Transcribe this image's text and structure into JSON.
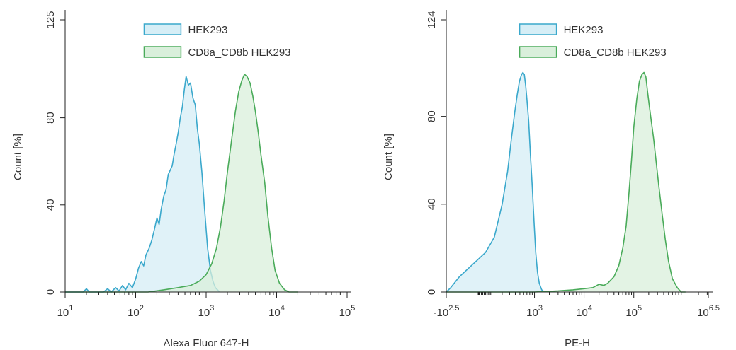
{
  "chart_data": [
    {
      "type": "area",
      "title": "",
      "xlabel": "Alexa Fluor 647-H",
      "ylabel": "Count [%]",
      "x_scale": "log",
      "xlim": [
        10,
        100000
      ],
      "ylim": [
        0,
        125
      ],
      "x_ticks": [
        {
          "value": 10,
          "base": "10",
          "exp": "1"
        },
        {
          "value": 100,
          "base": "10",
          "exp": "2"
        },
        {
          "value": 1000,
          "base": "10",
          "exp": "3"
        },
        {
          "value": 10000,
          "base": "10",
          "exp": "4"
        },
        {
          "value": 100000,
          "base": "10",
          "exp": "5"
        }
      ],
      "y_ticks": [
        {
          "value": 0,
          "label": "0"
        },
        {
          "value": 40,
          "label": "40"
        },
        {
          "value": 80,
          "label": "80"
        },
        {
          "value": 125,
          "label": "125"
        }
      ],
      "grid": false,
      "legend_position": "top-center",
      "series": [
        {
          "name": "HEK293",
          "stroke": "#3aa8cc",
          "fill": "#d6eef6",
          "points": [
            [
              10,
              0
            ],
            [
              18,
              0
            ],
            [
              20,
              1.5
            ],
            [
              22,
              0
            ],
            [
              35,
              0
            ],
            [
              40,
              1.5
            ],
            [
              45,
              0
            ],
            [
              52,
              2
            ],
            [
              58,
              0.5
            ],
            [
              65,
              3
            ],
            [
              72,
              1
            ],
            [
              80,
              4
            ],
            [
              90,
              2
            ],
            [
              100,
              6
            ],
            [
              110,
              11
            ],
            [
              120,
              14
            ],
            [
              130,
              12
            ],
            [
              140,
              17
            ],
            [
              155,
              20
            ],
            [
              170,
              24
            ],
            [
              185,
              29
            ],
            [
              200,
              34
            ],
            [
              215,
              31
            ],
            [
              230,
              38
            ],
            [
              250,
              44
            ],
            [
              270,
              47
            ],
            [
              290,
              54
            ],
            [
              310,
              56
            ],
            [
              330,
              58
            ],
            [
              350,
              63
            ],
            [
              375,
              68
            ],
            [
              400,
              73
            ],
            [
              430,
              80
            ],
            [
              460,
              85
            ],
            [
              490,
              93
            ],
            [
              520,
              99
            ],
            [
              560,
              95
            ],
            [
              600,
              96
            ],
            [
              650,
              89
            ],
            [
              700,
              86
            ],
            [
              750,
              75
            ],
            [
              800,
              68
            ],
            [
              870,
              55
            ],
            [
              950,
              38
            ],
            [
              1050,
              20
            ],
            [
              1150,
              10
            ],
            [
              1250,
              5
            ],
            [
              1350,
              2
            ],
            [
              1450,
              1
            ],
            [
              1550,
              0
            ]
          ]
        },
        {
          "name": "CD8a_CD8b HEK293",
          "stroke": "#4aab5a",
          "fill": "#d9efdb",
          "points": [
            [
              10,
              0
            ],
            [
              150,
              0
            ],
            [
              250,
              1
            ],
            [
              400,
              2
            ],
            [
              600,
              3
            ],
            [
              800,
              5
            ],
            [
              1000,
              8
            ],
            [
              1200,
              13
            ],
            [
              1400,
              20
            ],
            [
              1600,
              30
            ],
            [
              1800,
              42
            ],
            [
              2000,
              55
            ],
            [
              2300,
              70
            ],
            [
              2600,
              83
            ],
            [
              2900,
              92
            ],
            [
              3200,
              97
            ],
            [
              3500,
              100
            ],
            [
              3800,
              99
            ],
            [
              4200,
              96
            ],
            [
              4600,
              90
            ],
            [
              5000,
              83
            ],
            [
              5500,
              73
            ],
            [
              6000,
              63
            ],
            [
              6800,
              50
            ],
            [
              7500,
              35
            ],
            [
              8500,
              20
            ],
            [
              9500,
              10
            ],
            [
              11000,
              4
            ],
            [
              13000,
              1
            ],
            [
              15000,
              0
            ],
            [
              20000,
              0
            ]
          ]
        }
      ]
    },
    {
      "type": "area",
      "title": "",
      "xlabel": "PE-H",
      "ylabel": "Count [%]",
      "x_scale": "biexponential",
      "xlim": [
        -316,
        3162278
      ],
      "ylim": [
        0,
        124
      ],
      "x_ticks": [
        {
          "value": -316,
          "base": "-10",
          "exp": "2.5"
        },
        {
          "value": 1000,
          "base": "10",
          "exp": "3"
        },
        {
          "value": 10000,
          "base": "10",
          "exp": "4"
        },
        {
          "value": 100000,
          "base": "10",
          "exp": "5"
        },
        {
          "value": 3162278,
          "base": "10",
          "exp": "6.5"
        }
      ],
      "y_ticks": [
        {
          "value": 0,
          "label": "0"
        },
        {
          "value": 40,
          "label": "40"
        },
        {
          "value": 80,
          "label": "80"
        },
        {
          "value": 124,
          "label": "124"
        }
      ],
      "grid": false,
      "legend_position": "top-center",
      "series": [
        {
          "name": "HEK293",
          "stroke": "#3aa8cc",
          "fill": "#d6eef6",
          "points": [
            [
              -316,
              0
            ],
            [
              -250,
              2
            ],
            [
              -150,
              7
            ],
            [
              -50,
              12
            ],
            [
              0,
              15
            ],
            [
              50,
              18
            ],
            [
              120,
              25
            ],
            [
              200,
              40
            ],
            [
              270,
              55
            ],
            [
              330,
              70
            ],
            [
              390,
              82
            ],
            [
              440,
              90
            ],
            [
              490,
              96
            ],
            [
              540,
              99
            ],
            [
              580,
              100
            ],
            [
              620,
              99
            ],
            [
              660,
              94
            ],
            [
              700,
              88
            ],
            [
              760,
              78
            ],
            [
              830,
              62
            ],
            [
              900,
              48
            ],
            [
              980,
              32
            ],
            [
              1060,
              18
            ],
            [
              1150,
              9
            ],
            [
              1250,
              4
            ],
            [
              1400,
              1
            ],
            [
              1600,
              0
            ]
          ]
        },
        {
          "name": "CD8a_CD8b HEK293",
          "stroke": "#4aab5a",
          "fill": "#d9efdb",
          "points": [
            [
              -316,
              0
            ],
            [
              1000,
              0
            ],
            [
              3000,
              0.5
            ],
            [
              6000,
              1
            ],
            [
              10000,
              1.5
            ],
            [
              15000,
              2
            ],
            [
              20000,
              3.5
            ],
            [
              25000,
              3
            ],
            [
              30000,
              4
            ],
            [
              40000,
              7
            ],
            [
              50000,
              12
            ],
            [
              60000,
              20
            ],
            [
              70000,
              30
            ],
            [
              80000,
              45
            ],
            [
              90000,
              60
            ],
            [
              100000,
              75
            ],
            [
              115000,
              88
            ],
            [
              130000,
              96
            ],
            [
              145000,
              99
            ],
            [
              160000,
              100
            ],
            [
              175000,
              98
            ],
            [
              190000,
              91
            ],
            [
              205000,
              85
            ],
            [
              225000,
              78
            ],
            [
              250000,
              70
            ],
            [
              280000,
              60
            ],
            [
              320000,
              48
            ],
            [
              370000,
              36
            ],
            [
              430000,
              24
            ],
            [
              500000,
              14
            ],
            [
              600000,
              6
            ],
            [
              750000,
              2
            ],
            [
              900000,
              0
            ],
            [
              1100000,
              0
            ]
          ]
        }
      ]
    }
  ]
}
